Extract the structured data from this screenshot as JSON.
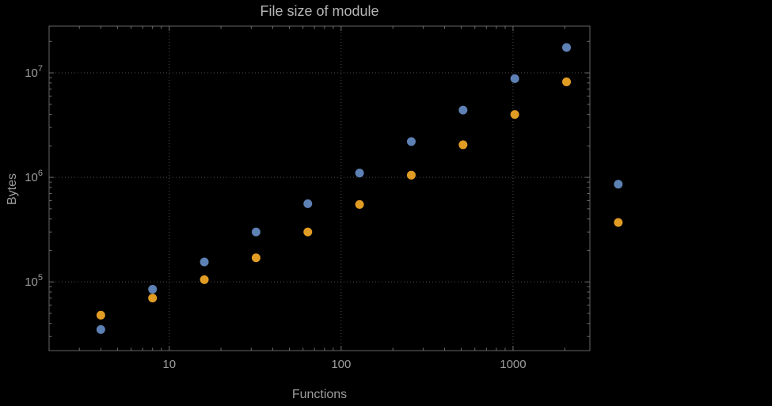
{
  "chart_data": {
    "type": "scatter",
    "title": "File size of module",
    "xlabel": "Functions",
    "ylabel": "Bytes",
    "xscale": "log",
    "yscale": "log",
    "xlim": [
      2,
      2800
    ],
    "ylim": [
      22000,
      28000000
    ],
    "x_ticks": [
      10,
      100,
      1000
    ],
    "x_tick_labels": [
      "10",
      "100",
      "1000"
    ],
    "y_ticks": [
      100000,
      1000000,
      10000000
    ],
    "y_tick_exponents": [
      5,
      6,
      7
    ],
    "grid": "dotted",
    "legend": "none",
    "x": [
      4,
      8,
      16,
      32,
      64,
      128,
      256,
      512,
      1024,
      2048,
      4096
    ],
    "series": [
      {
        "name": "series-blue",
        "color": "#5e81b5",
        "values": [
          35000,
          85000,
          155000,
          300000,
          560000,
          1100000,
          2200000,
          4400000,
          8800000,
          17500000,
          860000
        ]
      },
      {
        "name": "series-orange",
        "color": "#e19c24",
        "values": [
          48000,
          70000,
          105000,
          170000,
          300000,
          550000,
          1050000,
          2050000,
          4000000,
          8200000,
          370000
        ]
      }
    ]
  },
  "colors": {
    "background": "#000000",
    "frame": "#666666",
    "grid": "#4f4f4f",
    "tick": "#6e6e6e",
    "tick_label": "#9d9d9d",
    "title_text": "#b4b4b4"
  }
}
